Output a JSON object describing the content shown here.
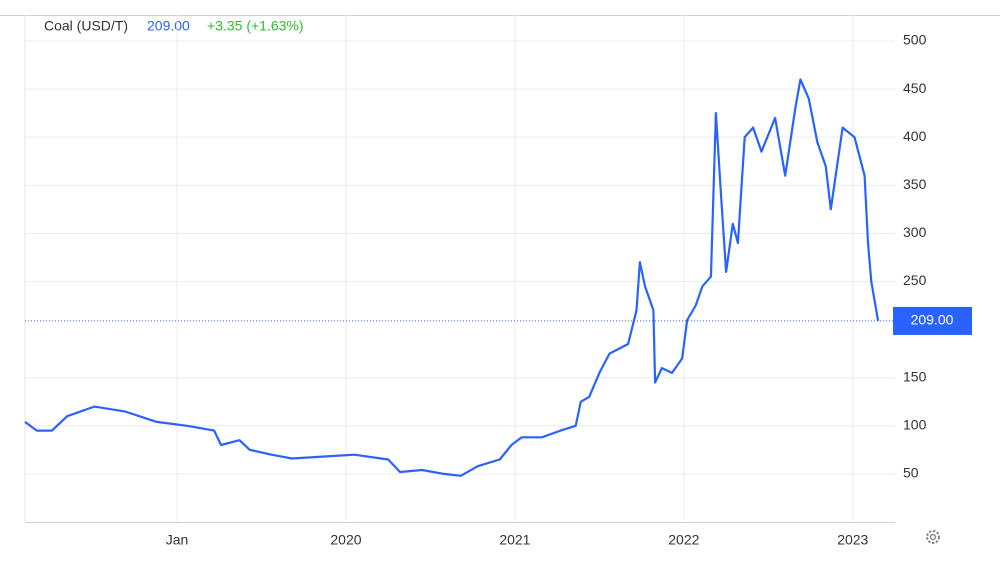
{
  "chart_data": {
    "type": "line",
    "title": "Coal (USD/T)",
    "last_price": {
      "value": 209,
      "label": "209.00"
    },
    "change_label": "+3.35 (+1.63%)",
    "change_color": "#2ebd2e",
    "x": [
      2018.1,
      2018.17,
      2018.26,
      2018.35,
      2018.51,
      2018.69,
      2018.88,
      2019.06,
      2019.22,
      2019.26,
      2019.37,
      2019.43,
      2019.56,
      2019.68,
      2019.86,
      2020.05,
      2020.25,
      2020.32,
      2020.45,
      2020.58,
      2020.68,
      2020.78,
      2020.91,
      2020.98,
      2021.04,
      2021.16,
      2021.27,
      2021.36,
      2021.39,
      2021.44,
      2021.5,
      2021.56,
      2021.67,
      2021.72,
      2021.74,
      2021.77,
      2021.82,
      2021.83,
      2021.87,
      2021.93,
      2021.99,
      2022.02,
      2022.07,
      2022.11,
      2022.16,
      2022.19,
      2022.22,
      2022.25,
      2022.29,
      2022.32,
      2022.36,
      2022.41,
      2022.46,
      2022.54,
      2022.6,
      2022.66,
      2022.69,
      2022.74,
      2022.79,
      2022.84,
      2022.87,
      2022.94,
      2023.01,
      2023.07,
      2023.09,
      2023.11,
      2023.15
    ],
    "series": [
      {
        "name": "Coal (USD/T)",
        "color": "#2962ff",
        "values": [
          104,
          95,
          95,
          110,
          120,
          115,
          104,
          100,
          95,
          80,
          85,
          75,
          70,
          66,
          68,
          70,
          65,
          52,
          54,
          50,
          48,
          58,
          65,
          80,
          88,
          88,
          95,
          100,
          125,
          130,
          155,
          175,
          185,
          220,
          270,
          245,
          220,
          145,
          160,
          155,
          170,
          210,
          225,
          245,
          255,
          425,
          340,
          260,
          310,
          290,
          400,
          410,
          385,
          420,
          360,
          430,
          460,
          440,
          395,
          370,
          325,
          410,
          400,
          360,
          290,
          250,
          209
        ]
      }
    ],
    "xlim": [
      2018.1,
      2023.25
    ],
    "xticks": [
      {
        "value": 2019,
        "label": "Jan"
      },
      2020,
      2021,
      2022,
      2023
    ],
    "ylim": [
      0,
      527
    ],
    "yticks": [
      50,
      100,
      150,
      250,
      300,
      350,
      400,
      450,
      500
    ],
    "grid": true
  }
}
